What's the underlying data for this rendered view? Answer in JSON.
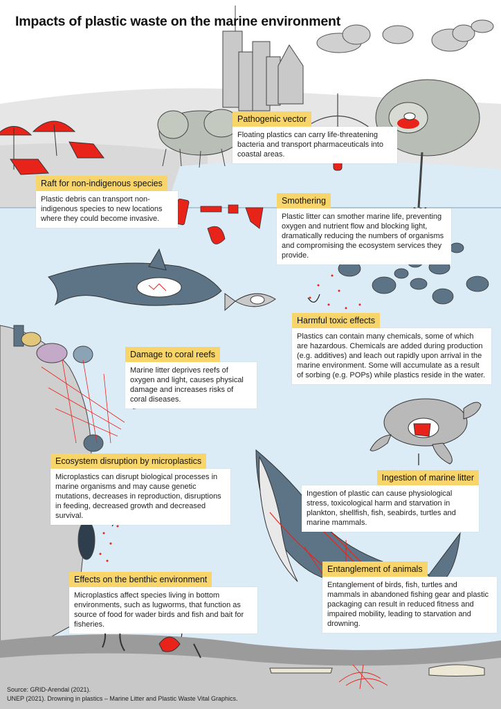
{
  "title": "Impacts of plastic waste on the marine environment",
  "callouts": {
    "pathogenic": {
      "heading": "Pathogenic vector",
      "text": "Floating plastics can carry life-threatening bacteria and transport pharmaceuticals into coastal areas."
    },
    "raft": {
      "heading": "Raft for non-indigenous species",
      "text": "Plastic debris can transport non-indigenous species to new locations where they could become invasive."
    },
    "smothering": {
      "heading": "Smothering",
      "text": "Plastic litter can smother marine life, preventing oxygen and nutrient flow and blocking light, dramatically reducing the numbers of organisms and compromising the ecosystem services they provide."
    },
    "toxic": {
      "heading": "Harmful toxic effects",
      "text": "Plastics can contain many chemicals, some of which are hazardous. Chemicals are added during production (e.g. additives) and leach out rapidly upon arrival in the marine environment. Some will accumulate as a result of sorbing (e.g. POPs) while plastics reside in the water."
    },
    "coral": {
      "heading": "Damage to coral reefs",
      "text": "Marine litter deprives reefs of oxygen and light, causes physical damage and increases risks of coral diseases."
    },
    "microplastics": {
      "heading": "Ecosystem disruption by microplastics",
      "text": "Microplastics can disrupt biological processes in marine organisms and may cause genetic mutations, decreases in reproduction, disruptions in feeding, decreased growth and decreased survival."
    },
    "ingestion": {
      "heading": "Ingestion of marine litter",
      "text": "Ingestion of plastic can cause physiological stress, toxicological harm and starvation in plankton, shellfish, fish, seabirds, turtles and marine mammals."
    },
    "entanglement": {
      "heading": "Entanglement of animals",
      "text": "Entanglement of birds, fish, turtles and mammals in abandoned fishing gear and plastic packaging can result in reduced fitness and impaired mobility, leading to starvation and drowning."
    },
    "benthic": {
      "heading": "Effects on the benthic environment",
      "text": "Microplastics affect species living in bottom environments, such as lugworms, that function as source of food for wader birds and fish and bait for fisheries."
    }
  },
  "source": {
    "line1": "Source: GRID-Arendal (2021).",
    "line2": "UNEP (2021). Drowning in plastics – Marine Litter and Plastic Waste Vital Graphics."
  },
  "colors": {
    "sea": "#dcecf6",
    "land": "#e4e4e4",
    "rock": "#cfcfcf",
    "animal": "#5d7487",
    "plastic": "#e8231a",
    "tag": "#f7d56a"
  }
}
